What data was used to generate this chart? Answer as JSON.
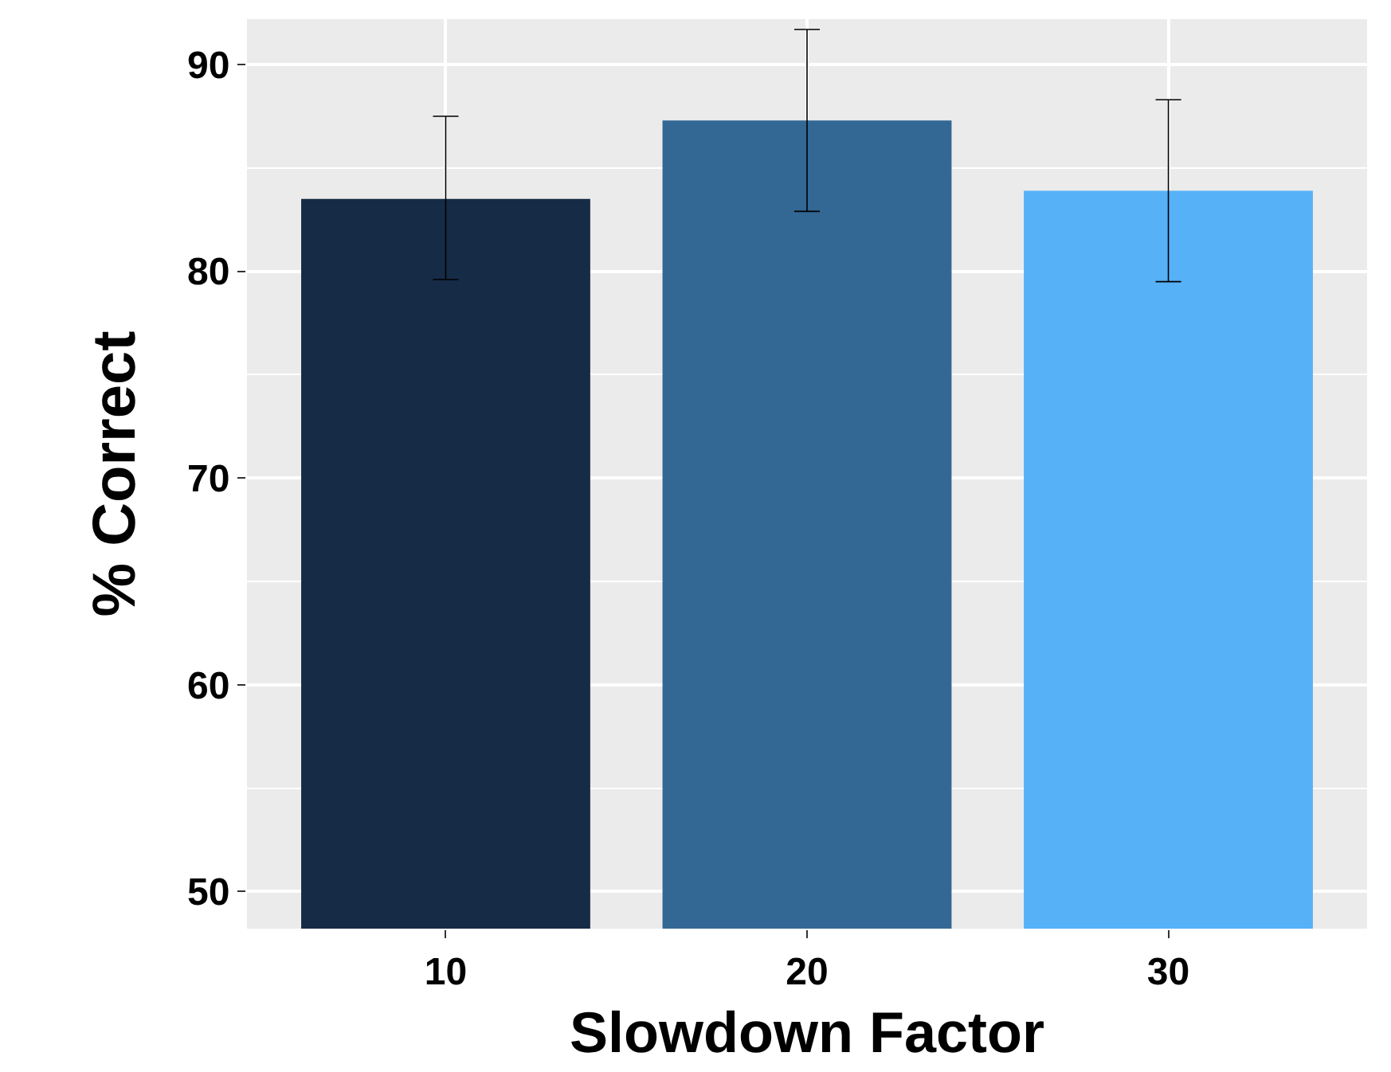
{
  "chart_data": {
    "type": "bar",
    "xlabel": "Slowdown Factor",
    "ylabel": "% Correct",
    "categories": [
      "10",
      "20",
      "30"
    ],
    "values": [
      83.5,
      87.3,
      83.9
    ],
    "errors": [
      [
        79.6,
        87.5
      ],
      [
        82.9,
        91.7
      ],
      [
        79.5,
        88.3
      ]
    ],
    "colors": [
      "#162b45",
      "#336895",
      "#56b1f7"
    ],
    "ylim": [
      48.2,
      92.2
    ],
    "yticks": [
      50,
      60,
      70,
      80,
      90
    ],
    "grid": true
  }
}
